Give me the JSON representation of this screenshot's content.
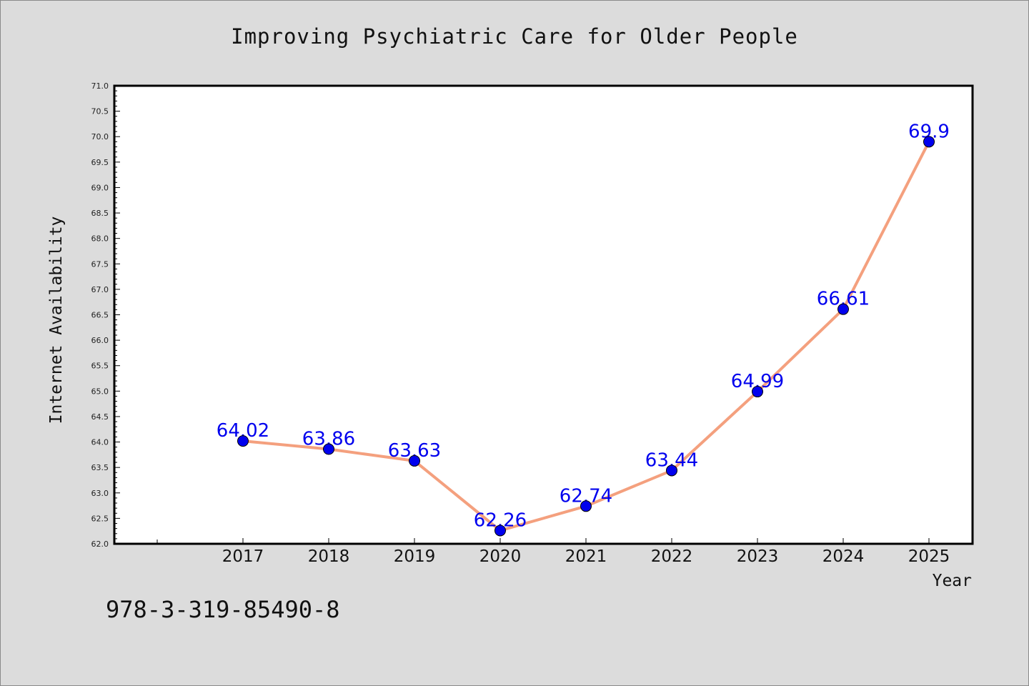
{
  "chart_data": {
    "type": "line",
    "title": "Improving Psychiatric Care for Older People",
    "xlabel": "Year",
    "ylabel": "Internet Availability",
    "x": [
      "2017",
      "2018",
      "2019",
      "2020",
      "2021",
      "2022",
      "2023",
      "2024",
      "2025"
    ],
    "values": [
      64.02,
      63.86,
      63.63,
      62.26,
      62.74,
      63.44,
      64.99,
      66.61,
      69.9
    ],
    "data_labels": [
      "64.02",
      "63.86",
      "63.63",
      "62.26",
      "62.74",
      "63.44",
      "64.99",
      "66.61",
      "69.9"
    ],
    "y_ticks": [
      "62.0",
      "62.5",
      "63.0",
      "63.5",
      "64.0",
      "64.5",
      "65.0",
      "65.5",
      "66.0",
      "66.5",
      "67.0",
      "67.5",
      "68.0",
      "68.5",
      "69.0",
      "69.5",
      "70.0",
      "70.5",
      "71.0"
    ],
    "ylim": [
      62.0,
      71.0
    ],
    "line_color": "#f4a07e",
    "marker_color": "#0000ee",
    "label_color": "#0000ee",
    "grid": false
  },
  "footer": {
    "isbn": "978-3-319-85490-8"
  }
}
